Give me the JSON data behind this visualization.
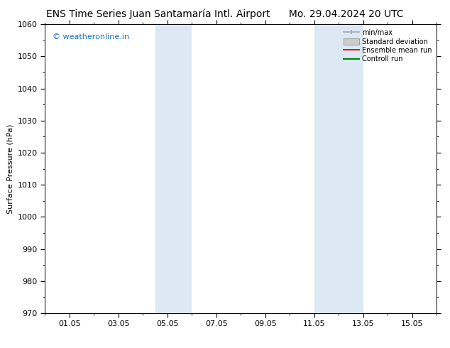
{
  "title_left": "ENS Time Series Juan Santamaría Intl. Airport",
  "title_right": "Mo. 29.04.2024 20 UTC",
  "ylabel": "Surface Pressure (hPa)",
  "ylim": [
    970,
    1060
  ],
  "yticks": [
    970,
    980,
    990,
    1000,
    1010,
    1020,
    1030,
    1040,
    1050,
    1060
  ],
  "xtick_labels": [
    "01.05",
    "03.05",
    "05.05",
    "07.05",
    "09.05",
    "11.05",
    "13.05",
    "15.05"
  ],
  "xtick_positions": [
    1,
    3,
    5,
    7,
    9,
    11,
    13,
    15
  ],
  "xlim": [
    0,
    16
  ],
  "shaded_bands": [
    {
      "xmin": 4.5,
      "xmax": 6.0,
      "color": "#dce9f5"
    },
    {
      "xmin": 11.0,
      "xmax": 13.0,
      "color": "#dce9f5"
    }
  ],
  "watermark_text": "© weatheronline.in",
  "watermark_color": "#1a6ec7",
  "background_color": "#ffffff",
  "legend_items": [
    {
      "label": "min/max",
      "color": "#aaaaaa",
      "lw": 1.5
    },
    {
      "label": "Standard deviation",
      "color": "#cccccc",
      "lw": 6
    },
    {
      "label": "Ensemble mean run",
      "color": "#ff0000",
      "lw": 1.5
    },
    {
      "label": "Controll run",
      "color": "#008000",
      "lw": 1.5
    }
  ],
  "title_fontsize": 10,
  "axis_fontsize": 8,
  "tick_fontsize": 8,
  "watermark_fontsize": 8,
  "legend_fontsize": 7
}
